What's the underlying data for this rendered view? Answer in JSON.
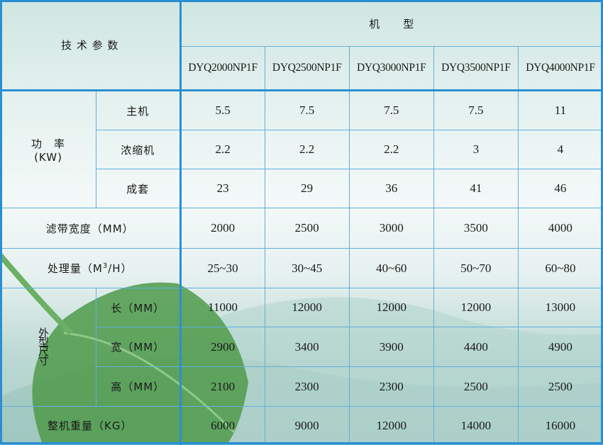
{
  "header": {
    "params_label": "技 术 参 数",
    "model_label": "机　　型",
    "models": [
      "DYQ2000NP1F",
      "DYQ2500NP1F",
      "DYQ3000NP1F",
      "DYQ3500NP1F",
      "DYQ4000NP1F"
    ]
  },
  "power": {
    "group_label": "功　率",
    "unit": "(KW)",
    "rows": [
      {
        "label": "主机",
        "values": [
          "5.5",
          "7.5",
          "7.5",
          "7.5",
          "11"
        ]
      },
      {
        "label": "浓缩机",
        "values": [
          "2.2",
          "2.2",
          "2.2",
          "3",
          "4"
        ]
      },
      {
        "label": "成套",
        "values": [
          "23",
          "29",
          "36",
          "41",
          "46"
        ]
      }
    ]
  },
  "belt_width": {
    "label": "滤带宽度（MM）",
    "values": [
      "2000",
      "2500",
      "3000",
      "3500",
      "4000"
    ]
  },
  "capacity": {
    "label_pre": "处理量（M",
    "label_sup": "3",
    "label_post": "/H）",
    "values": [
      "25~30",
      "30~45",
      "40~60",
      "50~70",
      "60~80"
    ]
  },
  "dimensions": {
    "group_label": "外型尺寸",
    "rows": [
      {
        "label": "长（MM）",
        "values": [
          "11000",
          "12000",
          "12000",
          "12000",
          "13000"
        ]
      },
      {
        "label": "宽（MM）",
        "values": [
          "2900",
          "3400",
          "3900",
          "4400",
          "4900"
        ]
      },
      {
        "label": "高（MM）",
        "values": [
          "2100",
          "2300",
          "2300",
          "2500",
          "2500"
        ]
      }
    ]
  },
  "weight": {
    "label": "整机重量（KG）",
    "values": [
      "6000",
      "9000",
      "12000",
      "14000",
      "16000"
    ]
  },
  "colors": {
    "border": "#2a8fd0",
    "grid": "#5fb0de",
    "leaf": "#4f9a4a"
  }
}
